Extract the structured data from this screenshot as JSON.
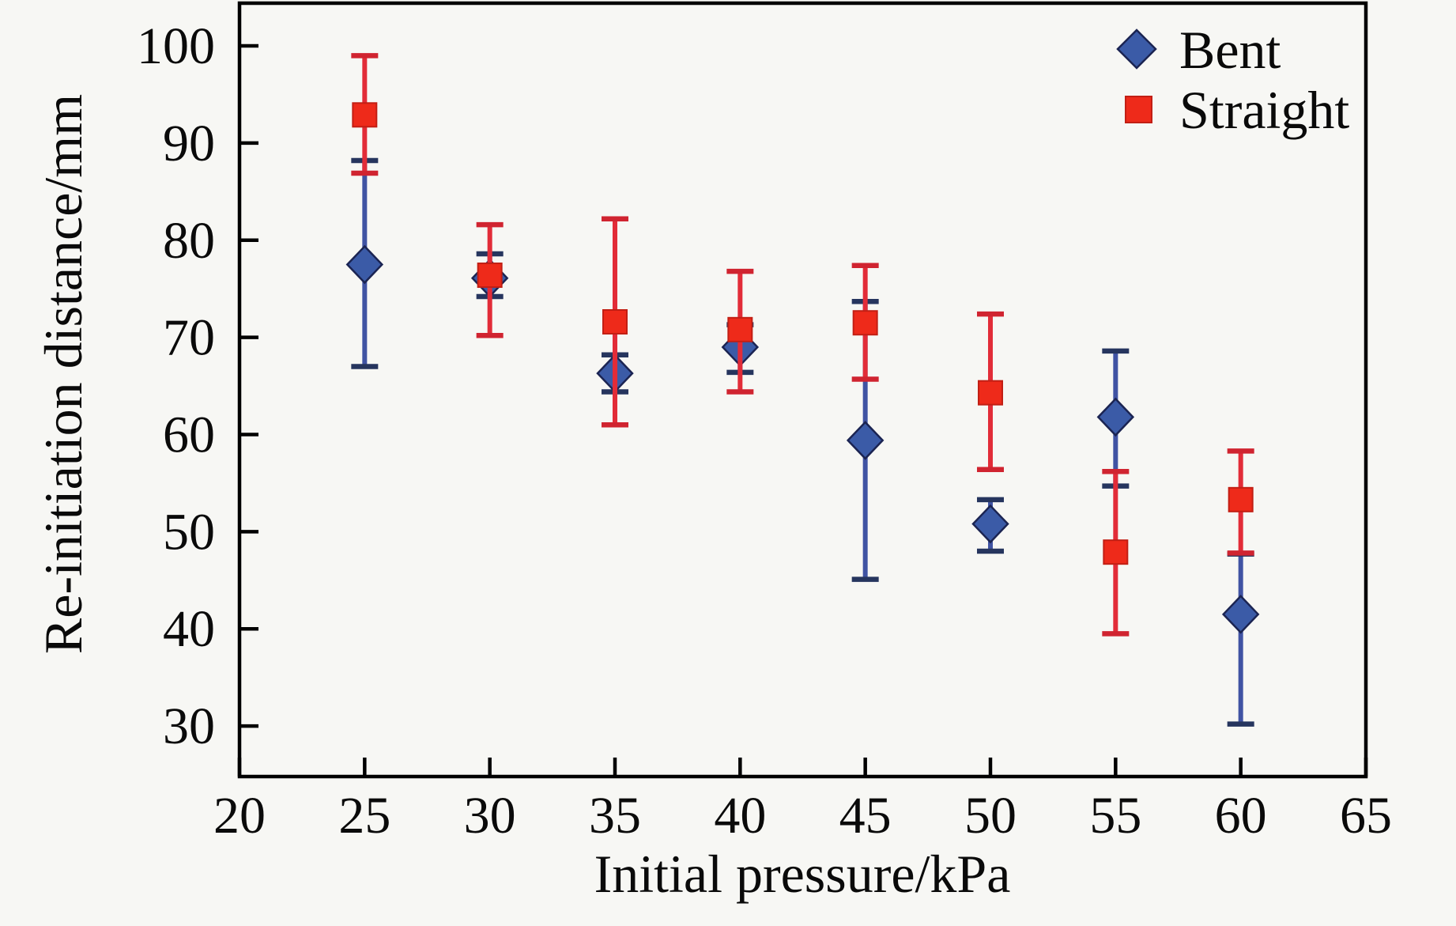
{
  "figure": {
    "background": "#f7f7f4",
    "frame_color": "#000000"
  },
  "chart_data": {
    "type": "scatter",
    "title": "",
    "xlabel": "Initial pressure/kPa",
    "ylabel": "Re-initiation distance/mm",
    "xlim": [
      20,
      65
    ],
    "ylim": [
      24.8,
      104.4
    ],
    "xticks": [
      20,
      25,
      30,
      35,
      40,
      45,
      50,
      55,
      60,
      65
    ],
    "yticks": [
      30,
      40,
      50,
      60,
      70,
      80,
      90,
      100
    ],
    "grid": false,
    "legend_position": "top-right-inside",
    "x": [
      25,
      30,
      35,
      40,
      45,
      50,
      55,
      60
    ],
    "series": [
      {
        "name": "Bent",
        "marker": "diamond",
        "marker_color": "#3b5ba7",
        "marker_edge_color": "#1b2452",
        "errorbar_color": "#4053a3",
        "cap_color": "#26355e",
        "values": [
          77.5,
          76.1,
          66.3,
          69.0,
          59.4,
          50.8,
          61.8,
          41.5
        ],
        "err_lo": [
          67.0,
          74.2,
          64.4,
          66.4,
          45.1,
          48.0,
          54.7,
          30.2
        ],
        "err_hi": [
          88.2,
          78.6,
          68.2,
          71.3,
          73.7,
          53.3,
          68.6,
          47.7
        ]
      },
      {
        "name": "Straight",
        "marker": "square",
        "marker_color": "#ee2a1a",
        "marker_edge_color": "#c21f14",
        "errorbar_color": "#e22c38",
        "cap_color": "#d02430",
        "values": [
          92.9,
          76.4,
          71.6,
          70.8,
          71.5,
          64.3,
          47.9,
          53.3
        ],
        "err_lo": [
          86.9,
          70.2,
          61.0,
          64.4,
          65.7,
          56.4,
          39.5,
          47.8
        ],
        "err_hi": [
          99.0,
          81.6,
          82.2,
          76.8,
          77.4,
          72.4,
          56.2,
          58.3
        ]
      }
    ]
  }
}
